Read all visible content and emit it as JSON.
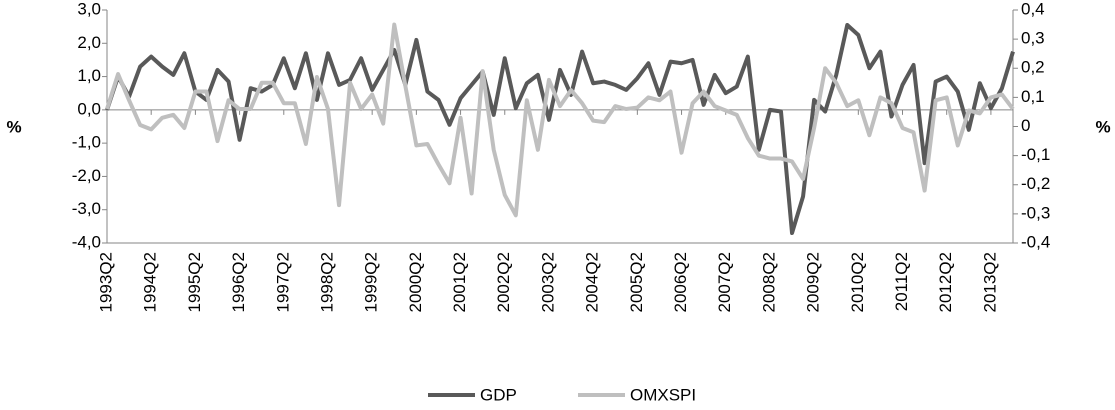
{
  "chart_data": {
    "type": "line",
    "categories": [
      "1993Q2",
      null,
      null,
      null,
      "1994Q2",
      null,
      null,
      null,
      "1995Q2",
      null,
      null,
      null,
      "1996Q2",
      null,
      null,
      null,
      "1997Q2",
      null,
      null,
      null,
      "1998Q2",
      null,
      null,
      null,
      "1999Q2",
      null,
      null,
      null,
      "2000Q2",
      null,
      null,
      null,
      "2001Q2",
      null,
      null,
      null,
      "2002Q2",
      null,
      null,
      null,
      "2003Q2",
      null,
      null,
      null,
      "2004Q2",
      null,
      null,
      null,
      "2005Q2",
      null,
      null,
      null,
      "2006Q2",
      null,
      null,
      null,
      "2007Q2",
      null,
      null,
      null,
      "2008Q2",
      null,
      null,
      null,
      "2009Q2",
      null,
      null,
      null,
      "2010Q2",
      null,
      null,
      null,
      "2011Q2",
      null,
      null,
      null,
      "2012Q2",
      null,
      null,
      null,
      "2013Q2",
      null,
      null
    ],
    "series": [
      {
        "name": "GDP",
        "color": "#595959",
        "values": [
          0.0,
          1.0,
          0.4,
          1.3,
          1.6,
          1.3,
          1.05,
          1.7,
          0.55,
          0.3,
          1.2,
          0.85,
          -0.9,
          0.65,
          0.55,
          0.75,
          1.55,
          0.65,
          1.7,
          0.3,
          1.7,
          0.75,
          0.9,
          1.55,
          0.6,
          1.2,
          1.8,
          0.75,
          2.1,
          0.55,
          0.3,
          -0.45,
          0.35,
          0.75,
          1.15,
          -0.15,
          1.55,
          0.05,
          0.8,
          1.05,
          -0.3,
          1.2,
          0.45,
          1.75,
          0.8,
          0.85,
          0.75,
          0.6,
          0.95,
          1.4,
          0.45,
          1.45,
          1.4,
          1.5,
          0.15,
          1.05,
          0.5,
          0.7,
          1.6,
          -1.2,
          0.0,
          -0.05,
          -3.7,
          -2.6,
          0.3,
          -0.05,
          1.05,
          2.55,
          2.25,
          1.25,
          1.75,
          -0.2,
          0.75,
          1.35,
          -1.6,
          0.85,
          1.0,
          0.55,
          -0.6,
          0.8,
          0.05,
          0.65,
          1.75
        ]
      },
      {
        "name": "OMXSPI",
        "color": "#bfbfbf",
        "axis": "y2",
        "values": [
          0.06,
          0.18,
          0.09,
          0.005,
          -0.01,
          0.03,
          0.04,
          -0.005,
          0.12,
          0.12,
          -0.05,
          0.09,
          0.06,
          0.06,
          0.15,
          0.15,
          0.08,
          0.08,
          -0.06,
          0.17,
          0.06,
          -0.27,
          0.15,
          0.06,
          0.11,
          0.01,
          0.35,
          0.14,
          -0.065,
          -0.06,
          -0.13,
          -0.195,
          0.03,
          -0.23,
          0.19,
          -0.08,
          -0.235,
          -0.305,
          0.09,
          -0.08,
          0.16,
          0.07,
          0.125,
          0.08,
          0.02,
          0.015,
          0.07,
          0.06,
          0.065,
          0.1,
          0.09,
          0.12,
          -0.09,
          0.08,
          0.12,
          0.07,
          0.055,
          0.04,
          -0.04,
          -0.1,
          -0.11,
          -0.11,
          -0.12,
          -0.18,
          -0.005,
          0.2,
          0.15,
          0.07,
          0.09,
          -0.03,
          0.1,
          0.08,
          -0.005,
          -0.02,
          -0.22,
          0.09,
          0.1,
          -0.065,
          0.055,
          0.045,
          0.1,
          0.11,
          0.06
        ]
      }
    ],
    "ylabel": "%",
    "y2label": "%",
    "ylim": [
      -4,
      3
    ],
    "yticks": [
      {
        "value": -4,
        "label": "-4,0"
      },
      {
        "value": -3,
        "label": "-3,0"
      },
      {
        "value": -2,
        "label": "-2,0"
      },
      {
        "value": -1,
        "label": "-1,0"
      },
      {
        "value": 0,
        "label": "0,0"
      },
      {
        "value": 1,
        "label": "1,0"
      },
      {
        "value": 2,
        "label": "2,0"
      },
      {
        "value": 3,
        "label": "3,0"
      }
    ],
    "y2lim": [
      -0.4,
      0.4
    ],
    "y2ticks": [
      {
        "value": -0.4,
        "label": "-0,4"
      },
      {
        "value": -0.3,
        "label": "-0,3"
      },
      {
        "value": -0.2,
        "label": "-0,2"
      },
      {
        "value": -0.1,
        "label": "-0,1"
      },
      0,
      {
        "value": 0.1,
        "label": "0,1"
      },
      {
        "value": 0.2,
        "label": "0,2"
      },
      {
        "value": 0.3,
        "label": "0,3"
      },
      {
        "value": 0.4,
        "label": "0,4"
      }
    ],
    "legend": "bottom"
  }
}
